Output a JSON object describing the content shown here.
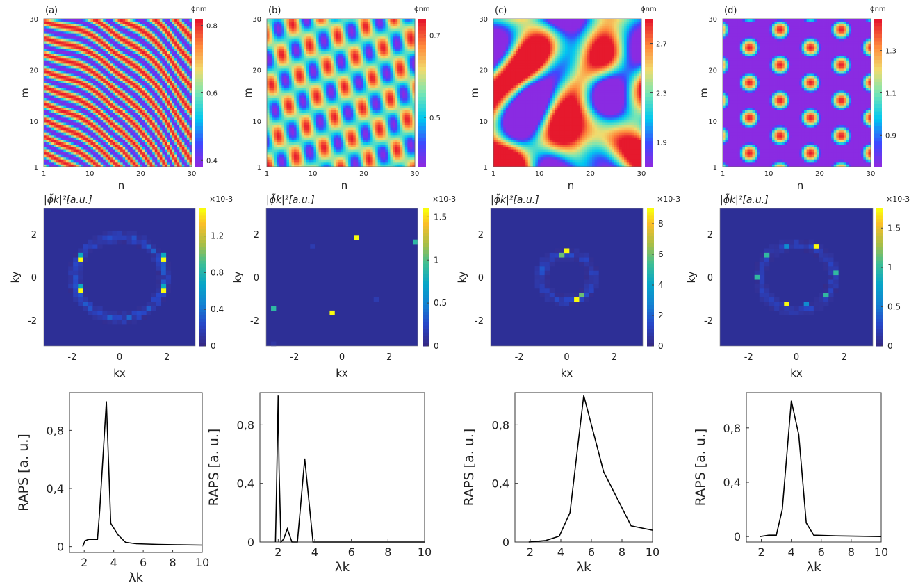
{
  "colors": {
    "fft_bg": "#2d2f96",
    "line": "#000000",
    "axis": "#333333"
  },
  "chart_data": [
    {
      "type": "heatmap",
      "role": "spatial",
      "pattern": "stripes",
      "panel_label": "(a)",
      "xlabel": "n",
      "ylabel": "m",
      "xticks": [
        "1",
        "10",
        "20",
        "30"
      ],
      "yticks": [
        "1",
        "10",
        "20",
        "30"
      ],
      "xlim": [
        1,
        30
      ],
      "ylim": [
        1,
        30
      ],
      "colorbar": {
        "title": "ϕnm",
        "range": [
          0.38,
          0.82
        ],
        "ticks": [
          0.4,
          0.6,
          0.8
        ],
        "tick_labels": [
          "0.4",
          "0.6",
          "0.8"
        ],
        "colormap": "rainbow"
      }
    },
    {
      "type": "heatmap",
      "role": "spatial",
      "pattern": "lattice",
      "panel_label": "(b)",
      "xlabel": "n",
      "ylabel": "m",
      "xticks": [
        "1",
        "10",
        "20",
        "30"
      ],
      "yticks": [
        "1",
        "10",
        "20",
        "30"
      ],
      "xlim": [
        1,
        30
      ],
      "ylim": [
        1,
        30
      ],
      "colorbar": {
        "title": "ϕnm",
        "range": [
          0.38,
          0.74
        ],
        "ticks": [
          0.5,
          0.7
        ],
        "tick_labels": [
          "0.5",
          "0.7"
        ],
        "colormap": "rainbow"
      }
    },
    {
      "type": "heatmap",
      "role": "spatial",
      "pattern": "labyrinth",
      "panel_label": "(c)",
      "xlabel": "n",
      "ylabel": "m",
      "xticks": [
        "1",
        "10",
        "20",
        "30"
      ],
      "yticks": [
        "1",
        "10",
        "20",
        "30"
      ],
      "xlim": [
        1,
        30
      ],
      "ylim": [
        1,
        30
      ],
      "colorbar": {
        "title": "ϕnm",
        "range": [
          1.7,
          2.9
        ],
        "ticks": [
          1.9,
          2.3,
          2.7
        ],
        "tick_labels": [
          "1.9",
          "2.3",
          "2.7"
        ],
        "colormap": "rainbow"
      }
    },
    {
      "type": "heatmap",
      "role": "spatial",
      "pattern": "spots",
      "panel_label": "(d)",
      "xlabel": "n",
      "ylabel": "m",
      "xticks": [
        "1",
        "10",
        "20",
        "30"
      ],
      "yticks": [
        "1",
        "10",
        "20",
        "30"
      ],
      "xlim": [
        1,
        30
      ],
      "ylim": [
        1,
        30
      ],
      "colorbar": {
        "title": "ϕnm",
        "range": [
          0.75,
          1.45
        ],
        "ticks": [
          0.9,
          1.1,
          1.3
        ],
        "tick_labels": [
          "0.9",
          "1.1",
          "1.3"
        ],
        "colormap": "rainbow"
      }
    },
    {
      "type": "heatmap",
      "role": "spectrum",
      "title": "|ϕ̃k|²[a.u.]",
      "xlabel": "kx",
      "ylabel": "ky",
      "xlim": [
        -3.2,
        3.2
      ],
      "ylim": [
        -3.2,
        3.2
      ],
      "xticks": [
        -2,
        0,
        2
      ],
      "yticks": [
        -2,
        0,
        2
      ],
      "colorbar": {
        "exponent": "×10-3",
        "range": [
          0,
          1.5
        ],
        "ticks": [
          0,
          0.4,
          0.8,
          1.2
        ],
        "tick_labels": [
          "0",
          "0.4",
          "0.8",
          "1.2"
        ],
        "colormap": "parula"
      },
      "peaks": [
        {
          "kx": -1.75,
          "ky": 0.75,
          "v": 1.5
        },
        {
          "kx": -1.75,
          "ky": -0.6,
          "v": 1.5
        },
        {
          "kx": 1.85,
          "ky": 0.75,
          "v": 1.5
        },
        {
          "kx": 1.85,
          "ky": -0.6,
          "v": 1.5
        },
        {
          "kx": -1.75,
          "ky": 0.95,
          "v": 0.7
        },
        {
          "kx": -1.75,
          "ky": -0.4,
          "v": 0.7
        },
        {
          "kx": 1.85,
          "ky": 0.95,
          "v": 0.7
        },
        {
          "kx": 1.85,
          "ky": -0.4,
          "v": 0.7
        }
      ],
      "ring": {
        "radius": 1.9,
        "level": 0.35
      }
    },
    {
      "type": "heatmap",
      "role": "spectrum",
      "title": "|ϕ̃k|²[a.u.]",
      "xlabel": "kx",
      "ylabel": "ky",
      "xlim": [
        -3.2,
        3.2
      ],
      "ylim": [
        -3.2,
        3.2
      ],
      "xticks": [
        -2,
        0,
        2
      ],
      "yticks": [
        -2,
        0,
        2
      ],
      "colorbar": {
        "exponent": "×10-3",
        "range": [
          0,
          1.6
        ],
        "ticks": [
          0,
          0.5,
          1,
          1.5
        ],
        "tick_labels": [
          "0",
          "0.5",
          "1",
          "1.5"
        ],
        "colormap": "parula"
      },
      "peaks": [
        {
          "kx": 0.55,
          "ky": 1.85,
          "v": 1.6
        },
        {
          "kx": -0.35,
          "ky": -1.6,
          "v": 1.6
        },
        {
          "kx": 3.0,
          "ky": 1.65,
          "v": 0.9
        },
        {
          "kx": -2.8,
          "ky": -1.4,
          "v": 0.9
        },
        {
          "kx": -1.15,
          "ky": 1.4,
          "v": 0.15
        },
        {
          "kx": 1.45,
          "ky": -1.1,
          "v": 0.15
        },
        {
          "kx": -2.9,
          "ky": -3.2,
          "v": 0.1
        }
      ],
      "ring": null
    },
    {
      "type": "heatmap",
      "role": "spectrum",
      "title": "|ϕ̃k|²[a.u.]",
      "xlabel": "kx",
      "ylabel": "ky",
      "xlim": [
        -3.2,
        3.2
      ],
      "ylim": [
        -3.2,
        3.2
      ],
      "xticks": [
        -2,
        0,
        2
      ],
      "yticks": [
        -2,
        0,
        2
      ],
      "colorbar": {
        "exponent": "×10-3",
        "range": [
          0,
          9
        ],
        "ticks": [
          0,
          2,
          4,
          6,
          8
        ],
        "tick_labels": [
          "0",
          "2",
          "4",
          "6",
          "8"
        ],
        "colormap": "parula"
      },
      "peaks": [
        {
          "kx": -0.1,
          "ky": 1.2,
          "v": 9
        },
        {
          "kx": 0.4,
          "ky": -1.0,
          "v": 9
        },
        {
          "kx": -0.3,
          "ky": 1.0,
          "v": 6
        },
        {
          "kx": 0.65,
          "ky": -0.85,
          "v": 6
        }
      ],
      "ring": {
        "radius": 1.1,
        "level": 1.8
      }
    },
    {
      "type": "heatmap",
      "role": "spectrum",
      "title": "|ϕ̃k|²[a.u.]",
      "xlabel": "kx",
      "ylabel": "ky",
      "xlim": [
        -3.2,
        3.2
      ],
      "ylim": [
        -3.2,
        3.2
      ],
      "xticks": [
        -2,
        0,
        2
      ],
      "yticks": [
        -2,
        0,
        2
      ],
      "colorbar": {
        "exponent": "×10-3",
        "range": [
          0,
          1.75
        ],
        "ticks": [
          0,
          0.5,
          1,
          1.5
        ],
        "tick_labels": [
          "0",
          "0.5",
          "1",
          "1.5"
        ],
        "colormap": "parula"
      },
      "peaks": [
        {
          "kx": 0.75,
          "ky": 1.4,
          "v": 1.75
        },
        {
          "kx": -0.5,
          "ky": -1.15,
          "v": 1.75
        },
        {
          "kx": -1.3,
          "ky": 1.0,
          "v": 1.0
        },
        {
          "kx": 1.3,
          "ky": -0.9,
          "v": 1.0
        },
        {
          "kx": 1.65,
          "ky": 0.25,
          "v": 1.0
        },
        {
          "kx": -1.6,
          "ky": 0.0,
          "v": 1.0
        },
        {
          "kx": -0.4,
          "ky": 1.5,
          "v": 0.6
        },
        {
          "kx": 0.35,
          "ky": -1.3,
          "v": 0.6
        }
      ],
      "ring": {
        "radius": 1.55,
        "level": 0.3
      }
    },
    {
      "type": "line",
      "role": "raps",
      "xlabel": "λk",
      "ylabel": "RAPS [a. u.]",
      "xlim": [
        1,
        10
      ],
      "ylim": [
        -0.04,
        1.06
      ],
      "xticks": [
        2,
        4,
        6,
        8,
        10
      ],
      "xtick_labels": [
        "2",
        "4",
        "6",
        "8",
        "10"
      ],
      "yticks": [
        0,
        0.4,
        0.8
      ],
      "ytick_labels": [
        "0",
        "0,4",
        "0,8"
      ],
      "x": [
        1.9,
        2.05,
        2.3,
        2.9,
        3.05,
        3.5,
        3.8,
        4.3,
        4.8,
        5.5,
        7,
        8.5,
        10
      ],
      "y": [
        0.0,
        0.04,
        0.05,
        0.05,
        0.25,
        1.0,
        0.16,
        0.08,
        0.03,
        0.02,
        0.015,
        0.012,
        0.01
      ]
    },
    {
      "type": "line",
      "role": "raps",
      "xlabel": "λk",
      "ylabel": "RAPS [a. u.]",
      "xlim": [
        1,
        10
      ],
      "ylim": [
        0,
        1.02
      ],
      "xticks": [
        2,
        4,
        6,
        8,
        10
      ],
      "xtick_labels": [
        "2",
        "4",
        "6",
        "8",
        "10"
      ],
      "yticks": [
        0,
        0.4,
        0.8
      ],
      "ytick_labels": [
        "0",
        "0,4",
        "0,8"
      ],
      "x": [
        1.85,
        1.9,
        2.0,
        2.05,
        2.15,
        2.3,
        2.5,
        2.75,
        3.05,
        3.45,
        3.9,
        4.1,
        6,
        8,
        10
      ],
      "y": [
        0.0,
        0.3,
        1.0,
        0.5,
        0.0,
        0.02,
        0.09,
        0.0,
        0.0,
        0.57,
        0.0,
        0.0,
        0.0,
        0.0,
        0.0
      ]
    },
    {
      "type": "line",
      "role": "raps",
      "xlabel": "λk",
      "ylabel": "RAPS [a. u.]",
      "xlim": [
        1,
        10
      ],
      "ylim": [
        0,
        1.02
      ],
      "xticks": [
        2,
        4,
        6,
        8,
        10
      ],
      "xtick_labels": [
        "2",
        "4",
        "6",
        "8",
        "10"
      ],
      "yticks": [
        0,
        0.4,
        0.8
      ],
      "ytick_labels": [
        "0",
        "0,4",
        "0,8"
      ],
      "x": [
        1.9,
        3.0,
        3.9,
        4.6,
        5.5,
        6.8,
        8.6,
        10
      ],
      "y": [
        0.0,
        0.01,
        0.04,
        0.2,
        1.0,
        0.48,
        0.11,
        0.08
      ]
    },
    {
      "type": "line",
      "role": "raps",
      "xlabel": "λk",
      "ylabel": "RAPS [a. u.]",
      "xlim": [
        1,
        10
      ],
      "ylim": [
        -0.04,
        1.06
      ],
      "xticks": [
        2,
        4,
        6,
        8,
        10
      ],
      "xtick_labels": [
        "2",
        "4",
        "6",
        "8",
        "10"
      ],
      "yticks": [
        0,
        0.4,
        0.8
      ],
      "ytick_labels": [
        "0",
        "0,4",
        "0,8"
      ],
      "x": [
        1.9,
        2.5,
        3.0,
        3.4,
        4.0,
        4.5,
        5.0,
        5.5,
        7,
        10
      ],
      "y": [
        0.0,
        0.01,
        0.01,
        0.2,
        1.0,
        0.75,
        0.1,
        0.01,
        0.005,
        0.0
      ]
    }
  ]
}
